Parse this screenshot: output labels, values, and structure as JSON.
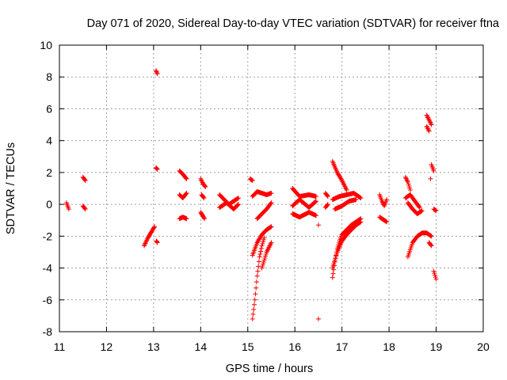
{
  "chart_data": {
    "type": "scatter",
    "title": "Day 071 of 2020, Sidereal Day-to-day VTEC variation (SDTVAR) for receiver ftna",
    "xlabel": "GPS time / hours",
    "ylabel": "SDTVAR / TECUs",
    "xlim": [
      11,
      20
    ],
    "ylim": [
      -8,
      10
    ],
    "xticks": [
      11,
      12,
      13,
      14,
      15,
      16,
      17,
      18,
      19,
      20
    ],
    "yticks": [
      -8,
      -6,
      -4,
      -2,
      0,
      2,
      4,
      6,
      8,
      10
    ],
    "grid": true,
    "marker": "+",
    "color": "#ff0000",
    "series": [
      {
        "name": "SDTVAR",
        "tracks": [
          {
            "x": [
              11.15,
              11.2
            ],
            "y": [
              0.1,
              -0.3
            ]
          },
          {
            "x": [
              11.5,
              11.55
            ],
            "y": [
              1.7,
              1.5
            ]
          },
          {
            "x": [
              11.5,
              11.55
            ],
            "y": [
              -0.1,
              -0.3
            ]
          },
          {
            "x": [
              12.8,
              12.88,
              12.96,
              13.02
            ],
            "y": [
              -2.6,
              -2.1,
              -1.7,
              -1.4
            ]
          },
          {
            "x": [
              13.05,
              13.08
            ],
            "y": [
              8.4,
              8.2
            ]
          },
          {
            "x": [
              13.05,
              13.08
            ],
            "y": [
              2.3,
              2.2
            ]
          },
          {
            "x": [
              13.06,
              13.08
            ],
            "y": [
              -2.3,
              -2.4
            ]
          },
          {
            "x": [
              13.55,
              13.62,
              13.7
            ],
            "y": [
              2.1,
              1.9,
              1.6
            ]
          },
          {
            "x": [
              13.55,
              13.62,
              13.7
            ],
            "y": [
              0.6,
              0.4,
              0.7
            ]
          },
          {
            "x": [
              13.55,
              13.62,
              13.7
            ],
            "y": [
              -0.9,
              -0.8,
              -0.9
            ]
          },
          {
            "x": [
              14.0,
              14.05,
              14.1
            ],
            "y": [
              1.6,
              1.3,
              1.1
            ]
          },
          {
            "x": [
              14.02,
              14.07
            ],
            "y": [
              0.6,
              0.4
            ]
          },
          {
            "x": [
              14.0,
              14.08
            ],
            "y": [
              -0.5,
              -0.9
            ]
          },
          {
            "x": [
              14.4,
              14.5,
              14.6,
              14.7,
              14.8
            ],
            "y": [
              0.6,
              0.3,
              0.0,
              0.2,
              0.4
            ]
          },
          {
            "x": [
              14.4,
              14.55,
              14.7,
              14.8
            ],
            "y": [
              -0.2,
              0.1,
              -0.3,
              0.0
            ]
          },
          {
            "x": [
              15.05,
              15.1
            ],
            "y": [
              1.6,
              1.5
            ]
          },
          {
            "x": [
              15.1,
              15.2,
              15.3,
              15.4,
              15.5
            ],
            "y": [
              0.5,
              0.8,
              0.7,
              0.6,
              0.7
            ]
          },
          {
            "x": [
              15.1,
              15.15,
              15.2,
              15.25,
              15.3,
              15.35
            ],
            "y": [
              -7.2,
              -6.0,
              -4.5,
              -3.3,
              -2.6,
              -2.1
            ]
          },
          {
            "x": [
              15.1,
              15.2,
              15.3,
              15.4,
              15.5
            ],
            "y": [
              -3.2,
              -2.4,
              -1.9,
              -1.6,
              -1.4
            ]
          },
          {
            "x": [
              15.2,
              15.3,
              15.4,
              15.5
            ],
            "y": [
              -0.9,
              -0.6,
              -0.3,
              0.1
            ]
          },
          {
            "x": [
              15.3,
              15.4,
              15.5
            ],
            "y": [
              -4.0,
              -3.0,
              -2.4
            ]
          },
          {
            "x": [
              15.95,
              16.1,
              16.3,
              16.45
            ],
            "y": [
              1.0,
              0.5,
              0.6,
              0.5
            ]
          },
          {
            "x": [
              15.95,
              16.1,
              16.3,
              16.45
            ],
            "y": [
              -0.1,
              0.3,
              -0.2,
              0.2
            ]
          },
          {
            "x": [
              15.95,
              16.1,
              16.3,
              16.45
            ],
            "y": [
              -0.6,
              -0.8,
              -0.5,
              -0.7
            ]
          },
          {
            "x": [
              16.5
            ],
            "y": [
              -1.3
            ]
          },
          {
            "x": [
              16.5
            ],
            "y": [
              -7.2
            ]
          },
          {
            "x": [
              16.65,
              16.7
            ],
            "y": [
              0.7,
              0.5
            ]
          },
          {
            "x": [
              16.65,
              16.7
            ],
            "y": [
              -0.2,
              0.0
            ]
          },
          {
            "x": [
              16.8,
              16.9,
              17.0,
              17.1
            ],
            "y": [
              2.7,
              2.0,
              1.5,
              0.9
            ]
          },
          {
            "x": [
              16.8,
              16.85,
              16.9,
              16.95,
              17.0,
              17.1,
              17.2,
              17.3,
              17.4
            ],
            "y": [
              -4.6,
              -3.6,
              -2.8,
              -2.3,
              -1.9,
              -1.6,
              -1.3,
              -1.1,
              -0.9
            ]
          },
          {
            "x": [
              16.8,
              16.9,
              17.0,
              17.1,
              17.2,
              17.3,
              17.4
            ],
            "y": [
              -4.0,
              -3.0,
              -2.3,
              -1.9,
              -1.6,
              -1.3,
              -1.1
            ]
          },
          {
            "x": [
              16.8,
              16.95,
              17.1,
              17.25,
              17.4
            ],
            "y": [
              0.3,
              0.5,
              0.6,
              0.7,
              0.4
            ]
          },
          {
            "x": [
              16.85,
              17.0,
              17.15,
              17.3
            ],
            "y": [
              -0.3,
              -0.1,
              0.2,
              0.3
            ]
          },
          {
            "x": [
              17.8,
              17.85,
              17.9,
              17.95
            ],
            "y": [
              0.6,
              0.2,
              -0.1,
              0.3
            ]
          },
          {
            "x": [
              17.8,
              17.9,
              17.95
            ],
            "y": [
              -0.8,
              -1.0,
              -1.1
            ]
          },
          {
            "x": [
              18.35,
              18.4,
              18.45
            ],
            "y": [
              1.7,
              1.4,
              0.9
            ]
          },
          {
            "x": [
              18.35,
              18.45,
              18.55,
              18.65
            ],
            "y": [
              0.4,
              0.6,
              0.2,
              -0.2
            ]
          },
          {
            "x": [
              18.4,
              18.5,
              18.6,
              18.7
            ],
            "y": [
              0.1,
              -0.3,
              -0.6,
              -0.4
            ]
          },
          {
            "x": [
              18.4,
              18.5,
              18.6,
              18.7,
              18.8,
              18.9
            ],
            "y": [
              -3.3,
              -2.4,
              -2.0,
              -1.8,
              -1.8,
              -2.0
            ]
          },
          {
            "x": [
              18.8,
              18.85,
              18.9
            ],
            "y": [
              5.6,
              5.3,
              5.0
            ]
          },
          {
            "x": [
              18.8,
              18.85
            ],
            "y": [
              4.9,
              4.6
            ]
          },
          {
            "x": [
              18.9,
              18.95
            ],
            "y": [
              2.5,
              2.1
            ]
          },
          {
            "x": [
              18.88
            ],
            "y": [
              1.6
            ]
          },
          {
            "x": [
              18.85,
              18.9
            ],
            "y": [
              -2.4,
              -2.6
            ]
          },
          {
            "x": [
              18.95,
              19.0
            ],
            "y": [
              -0.3,
              -0.4
            ]
          },
          {
            "x": [
              18.95,
              19.0
            ],
            "y": [
              -4.2,
              -4.7
            ]
          }
        ]
      }
    ]
  }
}
